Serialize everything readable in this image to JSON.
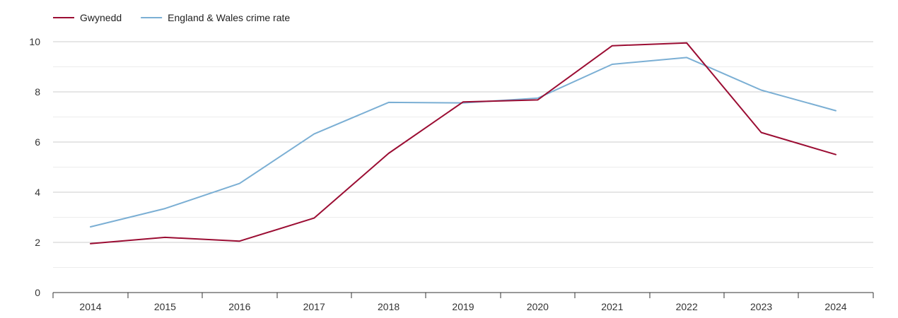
{
  "chart_data": {
    "type": "line",
    "title": "",
    "xlabel": "",
    "ylabel": "",
    "categories": [
      "2014",
      "2015",
      "2016",
      "2017",
      "2018",
      "2019",
      "2020",
      "2021",
      "2022",
      "2023",
      "2024"
    ],
    "ylim": [
      0,
      10
    ],
    "y_ticks": [
      0,
      2,
      4,
      6,
      8,
      10
    ],
    "grid": true,
    "legend_position": "top-left",
    "series": [
      {
        "name": "Gwynedd",
        "color": "#9b0d33",
        "values": [
          1.95,
          2.2,
          2.05,
          2.97,
          5.55,
          7.6,
          7.68,
          9.84,
          9.95,
          6.38,
          5.5
        ]
      },
      {
        "name": "England & Wales crime rate",
        "color": "#7bafd4",
        "values": [
          2.62,
          3.35,
          4.35,
          6.32,
          7.58,
          7.56,
          7.75,
          9.1,
          9.37,
          8.07,
          7.25
        ]
      }
    ]
  }
}
